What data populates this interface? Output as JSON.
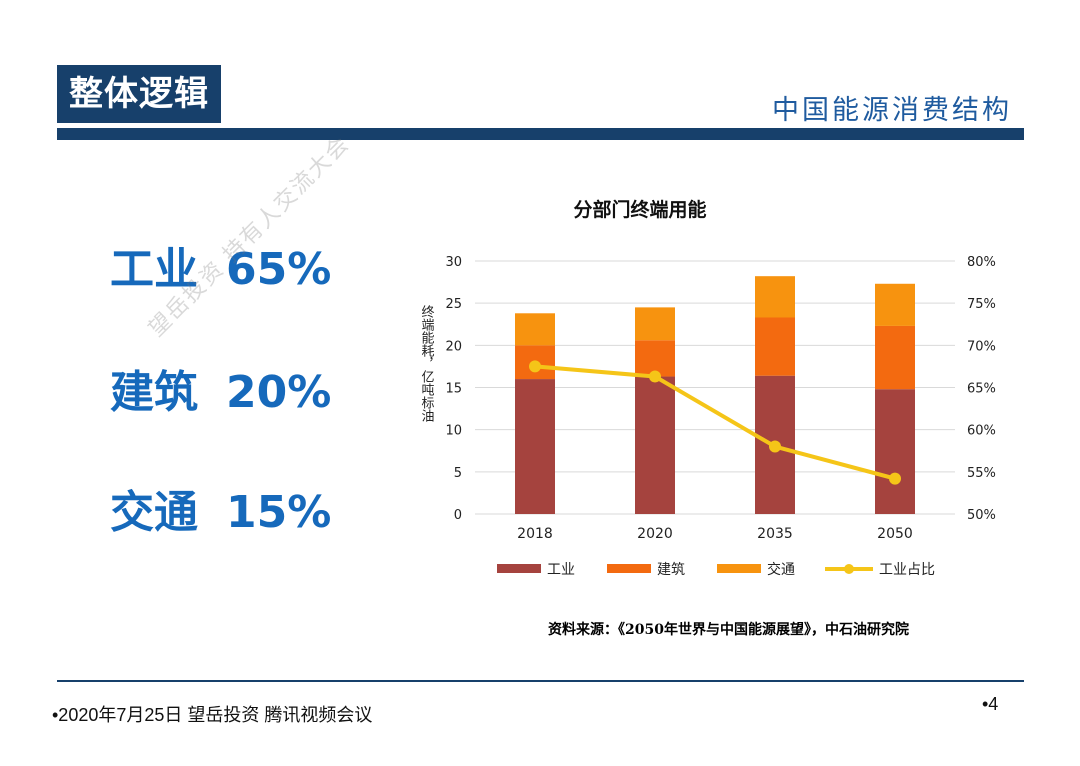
{
  "header": {
    "title": "整体逻辑",
    "subtitle": "中国能源消费结构"
  },
  "stats": [
    {
      "label": "工业",
      "value": "65%"
    },
    {
      "label": "建筑",
      "value": "20%"
    },
    {
      "label": "交通",
      "value": "15%"
    }
  ],
  "watermark": "望岳投资 持有人交流大会",
  "chart_data": {
    "type": "bar",
    "stacked": true,
    "title": "分部门终端用能",
    "ylabel": "终端能耗，亿吨标油",
    "ylim": [
      0,
      30
    ],
    "yticks": [
      0,
      5,
      10,
      15,
      20,
      25,
      30
    ],
    "y2lim": [
      50,
      80
    ],
    "y2ticks": [
      "50%",
      "55%",
      "60%",
      "65%",
      "70%",
      "75%",
      "80%"
    ],
    "categories": [
      "2018",
      "2020",
      "2035",
      "2050"
    ],
    "series": [
      {
        "name": "工业",
        "color": "#a5433e",
        "values": [
          16.0,
          16.3,
          16.4,
          14.8
        ]
      },
      {
        "name": "建筑",
        "color": "#f36a10",
        "values": [
          4.0,
          4.3,
          6.9,
          7.5
        ]
      },
      {
        "name": "交通",
        "color": "#f7930f",
        "values": [
          3.8,
          3.9,
          4.9,
          5.0
        ]
      }
    ],
    "line_series": {
      "name": "工业占比",
      "axis": "right",
      "color": "#f5c518",
      "values": [
        67.5,
        66.3,
        58.0,
        54.2
      ]
    }
  },
  "source": "资料来源：《2050年世界与中国能源展望》，中石油研究院",
  "footer": {
    "left": "•2020年7月25日 望岳投资 腾讯视频会议",
    "page": "•4"
  }
}
